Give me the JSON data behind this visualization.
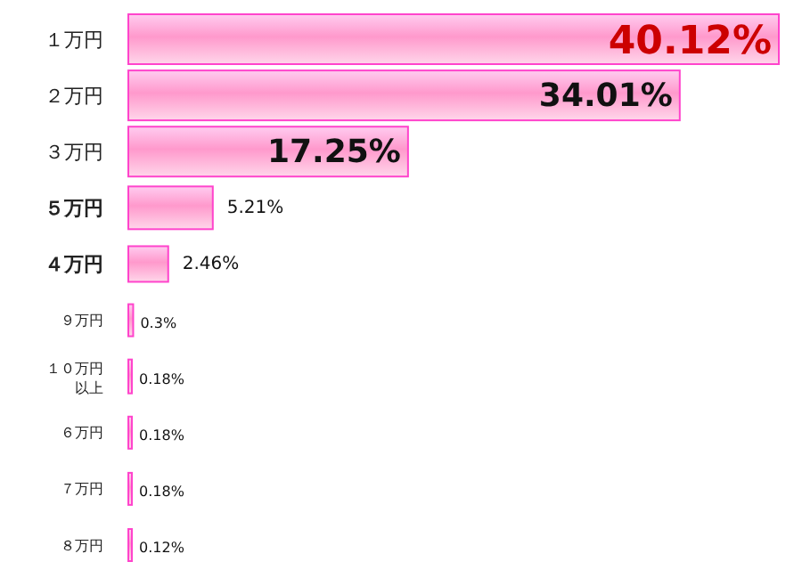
{
  "chart_data": {
    "type": "bar",
    "orientation": "horizontal",
    "relative": false,
    "categories": [
      "１万円",
      "２万円",
      "３万円",
      "５万円",
      "４万円",
      "９万円",
      "１０万円以上",
      "６万円",
      "７万円",
      "８万円"
    ],
    "values": [
      40.12,
      34.01,
      17.25,
      5.21,
      2.46,
      0.3,
      0.18,
      0.18,
      0.18,
      0.12
    ],
    "value_labels": [
      "40.12%",
      "34.01%",
      "17.25%",
      "5.21%",
      "2.46%",
      "0.3%",
      "0.18%",
      "0.18%",
      "0.18%",
      "0.12%"
    ],
    "color": "#ff44cc"
  }
}
